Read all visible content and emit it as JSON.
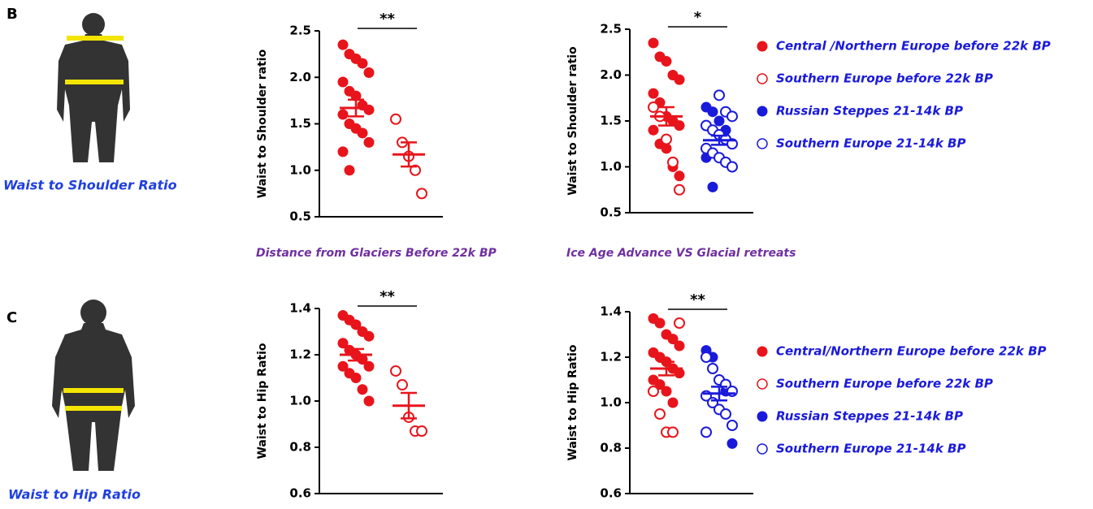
{
  "panels": [
    {
      "label": "B",
      "caption": "Waist to Shoulder Ratio"
    },
    {
      "label": "C",
      "caption": "Waist to Hip Ratio"
    }
  ],
  "chart_data": [
    {
      "type": "dot",
      "ylabel": "Waist to Shoulder ratio",
      "xlabel": "Distance from Glaciers Before 22k BP",
      "ylim": [
        0.5,
        2.5
      ],
      "yticks": [
        0.5,
        {
          "value": 1,
          "label": "1.0"
        },
        1.5,
        {
          "value": 2,
          "label": "2.0"
        },
        2.5
      ],
      "significance": "**",
      "groups": [
        {
          "color": "#e8141b",
          "mean": 1.67,
          "sem": 0.09,
          "series": [
            {
              "color": "#e8141b",
              "filled": true,
              "values": [
                2.35,
                2.25,
                2.2,
                2.15,
                2.05,
                1.95,
                1.85,
                1.8,
                1.7,
                1.65,
                1.6,
                1.5,
                1.45,
                1.4,
                1.3,
                1.2,
                1.0
              ]
            }
          ]
        },
        {
          "color": "#e8141b",
          "mean": 1.17,
          "sem": 0.13,
          "series": [
            {
              "color": "#e8141b",
              "filled": false,
              "values": [
                1.55,
                1.3,
                1.15,
                1.0,
                0.75
              ]
            }
          ]
        }
      ]
    },
    {
      "type": "dot",
      "ylabel": "Waist to Shoulder ratio",
      "xlabel": "Ice Age Advance VS Glacial retreats",
      "ylim": [
        0.5,
        2.5
      ],
      "yticks": [
        0.5,
        {
          "value": 1,
          "label": "1.0"
        },
        1.5,
        {
          "value": 2,
          "label": "2.0"
        },
        2.5
      ],
      "significance": "*",
      "groups": [
        {
          "color": "#e8141b",
          "mean": 1.55,
          "sem": 0.1,
          "series": [
            {
              "name": "Central /Northern Europe before 22k BP",
              "color": "#e8141b",
              "filled": true,
              "values": [
                2.35,
                2.2,
                2.15,
                2.0,
                1.95,
                1.8,
                1.7,
                1.55,
                1.5,
                1.45,
                1.4,
                1.25,
                1.2,
                1.0,
                0.9
              ]
            },
            {
              "name": "Southern Europe before 22k BP",
              "color": "#e8141b",
              "filled": false,
              "values": [
                1.65,
                1.55,
                1.3,
                1.05,
                0.75
              ]
            }
          ]
        },
        {
          "color": "#1a1adb",
          "mean": 1.29,
          "sem": 0.05,
          "series": [
            {
              "name": "Russian Steppes 21-14k BP",
              "color": "#1a1adb",
              "filled": true,
              "values": [
                1.65,
                1.6,
                1.5,
                1.4,
                1.25,
                1.1,
                0.78
              ]
            },
            {
              "name": "Southern Europe 21-14k BP",
              "color": "#1a1adb",
              "filled": false,
              "values": [
                1.78,
                1.6,
                1.55,
                1.45,
                1.4,
                1.35,
                1.3,
                1.25,
                1.2,
                1.15,
                1.1,
                1.05,
                1.0
              ]
            }
          ]
        }
      ]
    },
    {
      "type": "dot",
      "ylabel": "Waist to Hip Ratio",
      "ylim": [
        0.6,
        1.4
      ],
      "yticks": [
        0.6,
        0.8,
        {
          "value": 1,
          "label": "1.0"
        },
        1.2,
        1.4
      ],
      "significance": "**",
      "groups": [
        {
          "color": "#e8141b",
          "mean": 1.2,
          "sem": 0.025,
          "series": [
            {
              "color": "#e8141b",
              "filled": true,
              "values": [
                1.37,
                1.35,
                1.33,
                1.3,
                1.28,
                1.25,
                1.22,
                1.2,
                1.18,
                1.15,
                1.15,
                1.12,
                1.1,
                1.05,
                1.0
              ]
            }
          ]
        },
        {
          "color": "#e8141b",
          "mean": 0.98,
          "sem": 0.055,
          "series": [
            {
              "color": "#e8141b",
              "filled": false,
              "values": [
                1.13,
                1.07,
                0.93,
                0.87,
                0.87
              ]
            }
          ]
        }
      ]
    },
    {
      "type": "dot",
      "ylabel": "Waist to Hip Ratio",
      "ylim": [
        0.6,
        1.4
      ],
      "yticks": [
        0.6,
        0.8,
        {
          "value": 1,
          "label": "1.0"
        },
        1.2,
        1.4
      ],
      "significance": "**",
      "groups": [
        {
          "color": "#e8141b",
          "mean": 1.15,
          "sem": 0.03,
          "series": [
            {
              "name": "Central/Northern Europe before 22k BP",
              "color": "#e8141b",
              "filled": true,
              "values": [
                1.37,
                1.35,
                1.3,
                1.28,
                1.25,
                1.22,
                1.2,
                1.18,
                1.15,
                1.13,
                1.1,
                1.08,
                1.05,
                1.0
              ]
            },
            {
              "name": "Southern Europe before 22k BP",
              "color": "#e8141b",
              "filled": false,
              "values": [
                1.35,
                1.05,
                0.95,
                0.87,
                0.87
              ]
            }
          ]
        },
        {
          "color": "#1a1adb",
          "mean": 1.04,
          "sem": 0.03,
          "series": [
            {
              "name": "Russian Steppes 21-14k BP",
              "color": "#1a1adb",
              "filled": true,
              "values": [
                1.23,
                1.2,
                1.1,
                1.05,
                0.82
              ]
            },
            {
              "name": "Southern Europe 21-14k BP",
              "color": "#1a1adb",
              "filled": false,
              "values": [
                1.2,
                1.15,
                1.1,
                1.08,
                1.05,
                1.03,
                1.0,
                0.97,
                0.95,
                0.9,
                0.87
              ]
            }
          ]
        }
      ]
    }
  ]
}
